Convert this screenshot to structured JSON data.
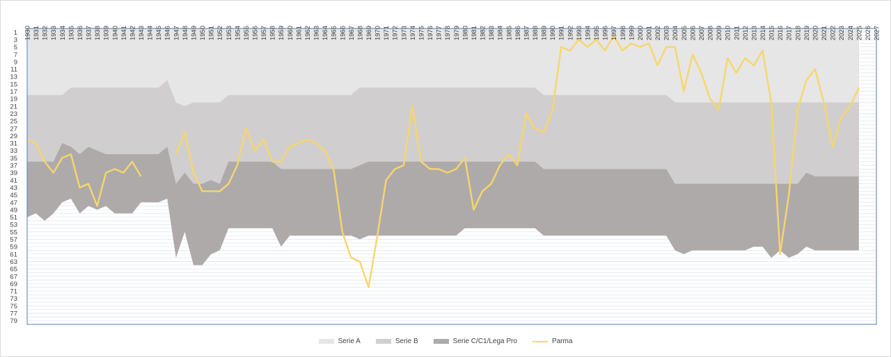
{
  "chart_data": {
    "type": "area",
    "title": "",
    "xlabel": "",
    "ylabel": "",
    "x_start": 1930,
    "x_end": 2027,
    "x": [
      1930,
      1931,
      1932,
      1933,
      1934,
      1935,
      1936,
      1937,
      1938,
      1939,
      1940,
      1941,
      1942,
      1943,
      1944,
      1945,
      1946,
      1947,
      1948,
      1949,
      1950,
      1951,
      1952,
      1953,
      1954,
      1955,
      1956,
      1957,
      1958,
      1959,
      1960,
      1961,
      1962,
      1963,
      1964,
      1965,
      1966,
      1967,
      1968,
      1969,
      1970,
      1971,
      1972,
      1973,
      1974,
      1975,
      1976,
      1977,
      1978,
      1979,
      1980,
      1981,
      1982,
      1983,
      1984,
      1985,
      1986,
      1987,
      1988,
      1989,
      1990,
      1991,
      1992,
      1993,
      1994,
      1995,
      1996,
      1997,
      1998,
      1999,
      2000,
      2001,
      2002,
      2003,
      2004,
      2005,
      2006,
      2007,
      2008,
      2009,
      2010,
      2011,
      2012,
      2013,
      2014,
      2015,
      2016,
      2017,
      2018,
      2019,
      2020,
      2021,
      2022,
      2023,
      2024,
      2025
    ],
    "y_ticks": [
      1,
      3,
      5,
      7,
      9,
      11,
      13,
      15,
      17,
      19,
      21,
      23,
      25,
      27,
      29,
      31,
      33,
      35,
      37,
      39,
      41,
      43,
      45,
      47,
      49,
      51,
      53,
      55,
      57,
      59,
      61,
      63,
      65,
      67,
      69,
      71,
      73,
      75,
      77,
      79
    ],
    "ylim": [
      0,
      80
    ],
    "y_reversed": true,
    "gridlines": true,
    "legend_position": "bottom",
    "series": [
      {
        "name": "Serie A",
        "color": "#e6e6e6",
        "values": [
          18,
          18,
          18,
          18,
          18,
          16,
          16,
          16,
          16,
          16,
          16,
          16,
          16,
          16,
          16,
          16,
          14,
          20,
          21,
          20,
          20,
          20,
          20,
          18,
          18,
          18,
          18,
          18,
          18,
          18,
          18,
          18,
          18,
          18,
          18,
          18,
          18,
          18,
          16,
          16,
          16,
          16,
          16,
          16,
          16,
          16,
          16,
          16,
          16,
          16,
          16,
          16,
          16,
          16,
          16,
          16,
          16,
          16,
          16,
          18,
          18,
          18,
          18,
          18,
          18,
          18,
          18,
          18,
          18,
          18,
          18,
          18,
          18,
          18,
          20,
          20,
          20,
          20,
          20,
          20,
          20,
          20,
          20,
          20,
          20,
          20,
          20,
          20,
          20,
          20,
          20,
          20,
          20,
          20,
          20,
          20
        ]
      },
      {
        "name": "Serie B",
        "color": "#d0cece",
        "values": [
          36,
          36,
          36,
          36,
          31,
          32,
          34,
          32,
          33,
          34,
          34,
          34,
          34,
          34,
          34,
          34,
          32,
          42,
          39,
          42,
          42,
          41,
          42,
          36,
          36,
          36,
          36,
          36,
          36,
          38,
          38,
          38,
          38,
          38,
          38,
          38,
          38,
          38,
          37,
          36,
          36,
          36,
          36,
          36,
          36,
          36,
          36,
          36,
          36,
          36,
          36,
          36,
          36,
          36,
          36,
          36,
          36,
          36,
          36,
          38,
          38,
          38,
          38,
          38,
          38,
          38,
          38,
          38,
          38,
          38,
          38,
          38,
          38,
          38,
          42,
          42,
          42,
          42,
          42,
          42,
          42,
          42,
          42,
          42,
          42,
          42,
          42,
          42,
          42,
          39,
          40,
          40,
          40,
          40,
          40,
          40
        ]
      },
      {
        "name": "Serie C/C1/Lega Pro",
        "color": "#aeaaaa",
        "values": [
          51,
          50,
          52,
          50,
          47,
          46,
          50,
          48,
          49,
          48,
          50,
          50,
          50,
          47,
          47,
          47,
          46,
          62,
          55,
          64,
          64,
          61,
          60,
          54,
          54,
          54,
          54,
          54,
          54,
          59,
          56,
          56,
          56,
          56,
          56,
          56,
          56,
          56,
          57,
          56,
          56,
          56,
          56,
          56,
          56,
          56,
          56,
          56,
          56,
          56,
          54,
          54,
          54,
          54,
          54,
          54,
          54,
          54,
          54,
          56,
          56,
          56,
          56,
          56,
          56,
          56,
          56,
          56,
          56,
          56,
          56,
          56,
          56,
          56,
          60,
          61,
          60,
          60,
          60,
          60,
          60,
          60,
          60,
          59,
          59,
          62,
          60,
          62,
          61,
          59,
          60,
          60,
          60,
          60,
          60,
          60
        ]
      },
      {
        "name": "Parma",
        "color": "#f7d66b",
        "values": [
          30,
          31,
          36,
          39,
          35,
          34,
          43,
          42,
          48,
          39,
          38,
          39,
          36,
          40,
          null,
          null,
          null,
          34,
          28,
          39,
          44,
          44,
          44,
          42,
          37,
          27,
          33,
          30,
          36,
          36,
          32,
          31,
          30,
          31,
          33,
          38,
          55,
          62,
          63,
          70,
          56,
          41,
          38,
          37,
          21,
          36,
          38,
          38,
          39,
          38,
          35,
          49,
          44,
          42,
          37,
          34,
          37,
          23,
          27,
          28,
          22,
          5,
          6,
          3,
          5,
          3,
          6,
          2,
          6,
          4,
          5,
          4,
          10,
          5,
          5,
          17,
          7,
          12,
          19,
          22,
          8,
          12,
          8,
          10,
          6,
          20,
          61,
          45,
          22,
          14,
          11,
          20,
          32,
          24,
          21,
          16
        ]
      }
    ]
  }
}
